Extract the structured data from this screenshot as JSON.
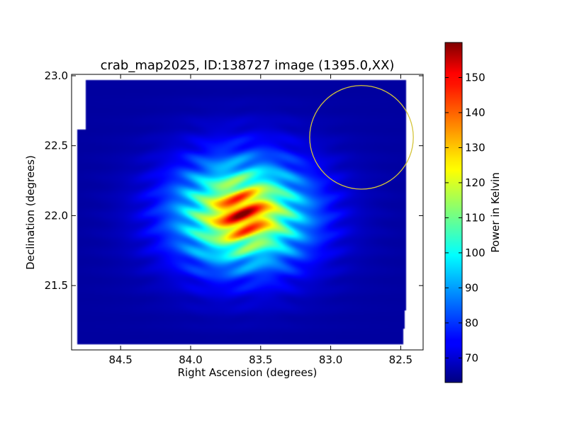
{
  "chart_data": {
    "type": "heatmap",
    "title": "crab_map2025, ID:138727 image (1395.0,XX)",
    "xlabel": "Right Ascension (degrees)",
    "ylabel": "Declination (degrees)",
    "xlim": [
      84.85,
      82.34
    ],
    "ylim": [
      21.04,
      23.01
    ],
    "x_inverted": true,
    "xticks": [
      {
        "value": 84.5,
        "label": "84.5"
      },
      {
        "value": 84.0,
        "label": "84.0"
      },
      {
        "value": 83.5,
        "label": "83.5"
      },
      {
        "value": 83.0,
        "label": "83.0"
      },
      {
        "value": 82.5,
        "label": "82.5"
      }
    ],
    "yticks": [
      {
        "value": 23.0,
        "label": "23.0"
      },
      {
        "value": 22.5,
        "label": "22.5"
      },
      {
        "value": 22.0,
        "label": "22.0"
      },
      {
        "value": 21.5,
        "label": "21.5"
      }
    ],
    "colormap": "jet",
    "colorbar": {
      "label": "Power in Kelvin",
      "range": [
        63,
        160
      ],
      "ticks": [
        {
          "value": 70,
          "label": "70"
        },
        {
          "value": 80,
          "label": "80"
        },
        {
          "value": 90,
          "label": "90"
        },
        {
          "value": 100,
          "label": "100"
        },
        {
          "value": 110,
          "label": "110"
        },
        {
          "value": 120,
          "label": "120"
        },
        {
          "value": 130,
          "label": "130"
        },
        {
          "value": 140,
          "label": "140"
        },
        {
          "value": 150,
          "label": "150"
        }
      ]
    },
    "source_peak": {
      "ra": 83.63,
      "dec": 22.01,
      "peak_kelvin": 158,
      "background_kelvin": 66
    },
    "annotation_circle": {
      "ra_center": 82.78,
      "dec_center": 22.56,
      "radius_deg": 0.37,
      "color": "#d4c43a"
    },
    "grid": false
  }
}
